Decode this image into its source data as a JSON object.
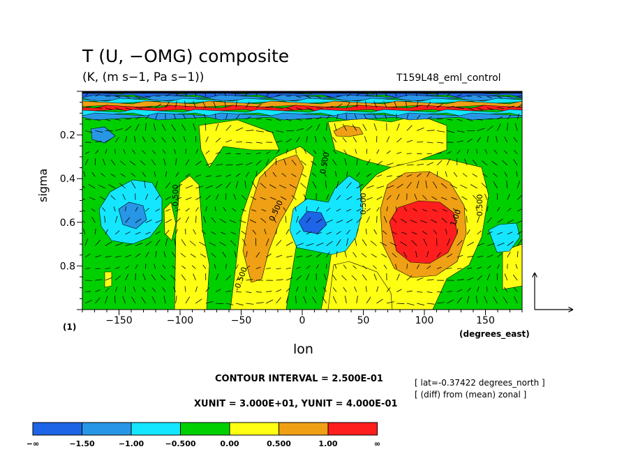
{
  "header": {
    "title": "T (U, −OMG) composite",
    "subtitle": "(K, (m s−1, Pa s−1))",
    "run_label": "T159L48_eml_control"
  },
  "footer": {
    "panel_id": "(1)",
    "x_units": "(degrees_east)",
    "contour_interval": "CONTOUR INTERVAL = 2.500E-01",
    "unit_vectors": "XUNIT = 3.000E+01, YUNIT = 4.000E-01",
    "lat_info": "[ lat=-0.37422 degrees_north ]",
    "diff_info": "[ (diff) from (mean) zonal ]"
  },
  "chart_data": {
    "type": "heatmap",
    "title": "T (U, −OMG) composite",
    "subtitle": "(K, (m s−1, Pa s−1))",
    "xlabel": "lon",
    "ylabel": "sigma",
    "xlim": [
      -180,
      180
    ],
    "ylim": [
      1.0,
      0.0
    ],
    "x_ticks": [
      -150,
      -100,
      -50,
      0,
      50,
      100,
      150
    ],
    "x_tick_labels": [
      "−150",
      "−100",
      "−50",
      "0",
      "50",
      "100",
      "150"
    ],
    "y_ticks": [
      0.2,
      0.4,
      0.6,
      0.8
    ],
    "y_tick_labels": [
      "0.2",
      "0.4",
      "0.6",
      "0.8"
    ],
    "colorbar": {
      "labels": [
        "−∞",
        "−1.50",
        "−1.00",
        "−0.500",
        "0.00",
        "0.500",
        "1.00",
        "∞"
      ],
      "colors": [
        "#1e64e6",
        "#2896e6",
        "#14e6ff",
        "#00d000",
        "#ffff14",
        "#f0a014",
        "#ff1e1e"
      ]
    },
    "contour_labels": [
      "-0.500",
      "0.500",
      "0.500",
      "0.500",
      "0.500",
      "1.00",
      "-0.500"
    ],
    "features": [
      {
        "kind": "min",
        "lon": -140,
        "sigma": 0.57,
        "value": -1.5
      },
      {
        "kind": "min",
        "lon": 5,
        "sigma": 0.6,
        "value": -1.5
      },
      {
        "kind": "max",
        "lon": 105,
        "sigma": 0.6,
        "value": 1.5
      },
      {
        "kind": "max",
        "lon": -20,
        "sigma": 0.45,
        "value": 1.0
      },
      {
        "kind": "max",
        "lon": 30,
        "sigma": 0.15,
        "value": 1.0
      }
    ],
    "vector_units": {
      "x": 30.0,
      "y": 0.4
    }
  }
}
